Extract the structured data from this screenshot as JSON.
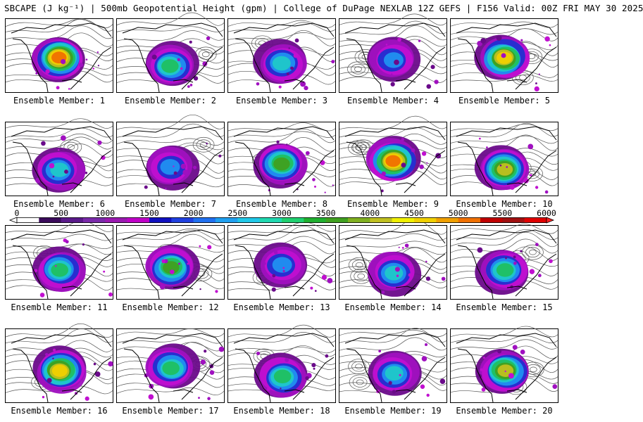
{
  "title": "SBCAPE (J kg⁻¹) | 500mb Geopotential Height (gpm) | College of DuPage NEXLAB 12Z GEFS | F156 Valid: 00Z FRI MAY 30 2025",
  "members": [
    {
      "label": "Ensemble Member: 1",
      "cape_level": 0.9
    },
    {
      "label": "Ensemble Member: 2",
      "cape_level": 0.6
    },
    {
      "label": "Ensemble Member: 3",
      "cape_level": 0.5
    },
    {
      "label": "Ensemble Member: 4",
      "cape_level": 0.4
    },
    {
      "label": "Ensemble Member: 5",
      "cape_level": 0.85
    },
    {
      "label": "Ensemble Member: 6",
      "cape_level": 0.5
    },
    {
      "label": "Ensemble Member: 7",
      "cape_level": 0.45
    },
    {
      "label": "Ensemble Member: 8",
      "cape_level": 0.65
    },
    {
      "label": "Ensemble Member: 9",
      "cape_level": 0.9
    },
    {
      "label": "Ensemble Member: 10",
      "cape_level": 0.75
    },
    {
      "label": "Ensemble Member: 11",
      "cape_level": 0.55
    },
    {
      "label": "Ensemble Member: 12",
      "cape_level": 0.7
    },
    {
      "label": "Ensemble Member: 13",
      "cape_level": 0.45
    },
    {
      "label": "Ensemble Member: 14",
      "cape_level": 0.5
    },
    {
      "label": "Ensemble Member: 15",
      "cape_level": 0.6
    },
    {
      "label": "Ensemble Member: 16",
      "cape_level": 0.85
    },
    {
      "label": "Ensemble Member: 17",
      "cape_level": 0.55
    },
    {
      "label": "Ensemble Member: 18",
      "cape_level": 0.6
    },
    {
      "label": "Ensemble Member: 19",
      "cape_level": 0.5
    },
    {
      "label": "Ensemble Member: 20",
      "cape_level": 0.75
    }
  ],
  "colorbar": {
    "ticks": [
      "0",
      "500",
      "1000",
      "1500",
      "2000",
      "2500",
      "3000",
      "3500",
      "4000",
      "4500",
      "5000",
      "5500",
      "6000"
    ],
    "min": 0,
    "max": 6000,
    "step": 250,
    "colors": [
      "#ffffff",
      "#3a0a5a",
      "#5a1a8a",
      "#7a2aaa",
      "#9a1ab0",
      "#c000c8",
      "#1010c0",
      "#2040e0",
      "#2070f0",
      "#20a0f0",
      "#20c8e8",
      "#20d8b0",
      "#20d070",
      "#20b030",
      "#40a020",
      "#80b020",
      "#c0c020",
      "#f0f000",
      "#f0d000",
      "#f0a000",
      "#f07000",
      "#c00000",
      "#a01010",
      "#e00000",
      "#ff2020",
      "#ff5050",
      "#707070",
      "#909090",
      "#b0b0b0",
      "#c8e0e8",
      "#a0c8d0"
    ]
  }
}
